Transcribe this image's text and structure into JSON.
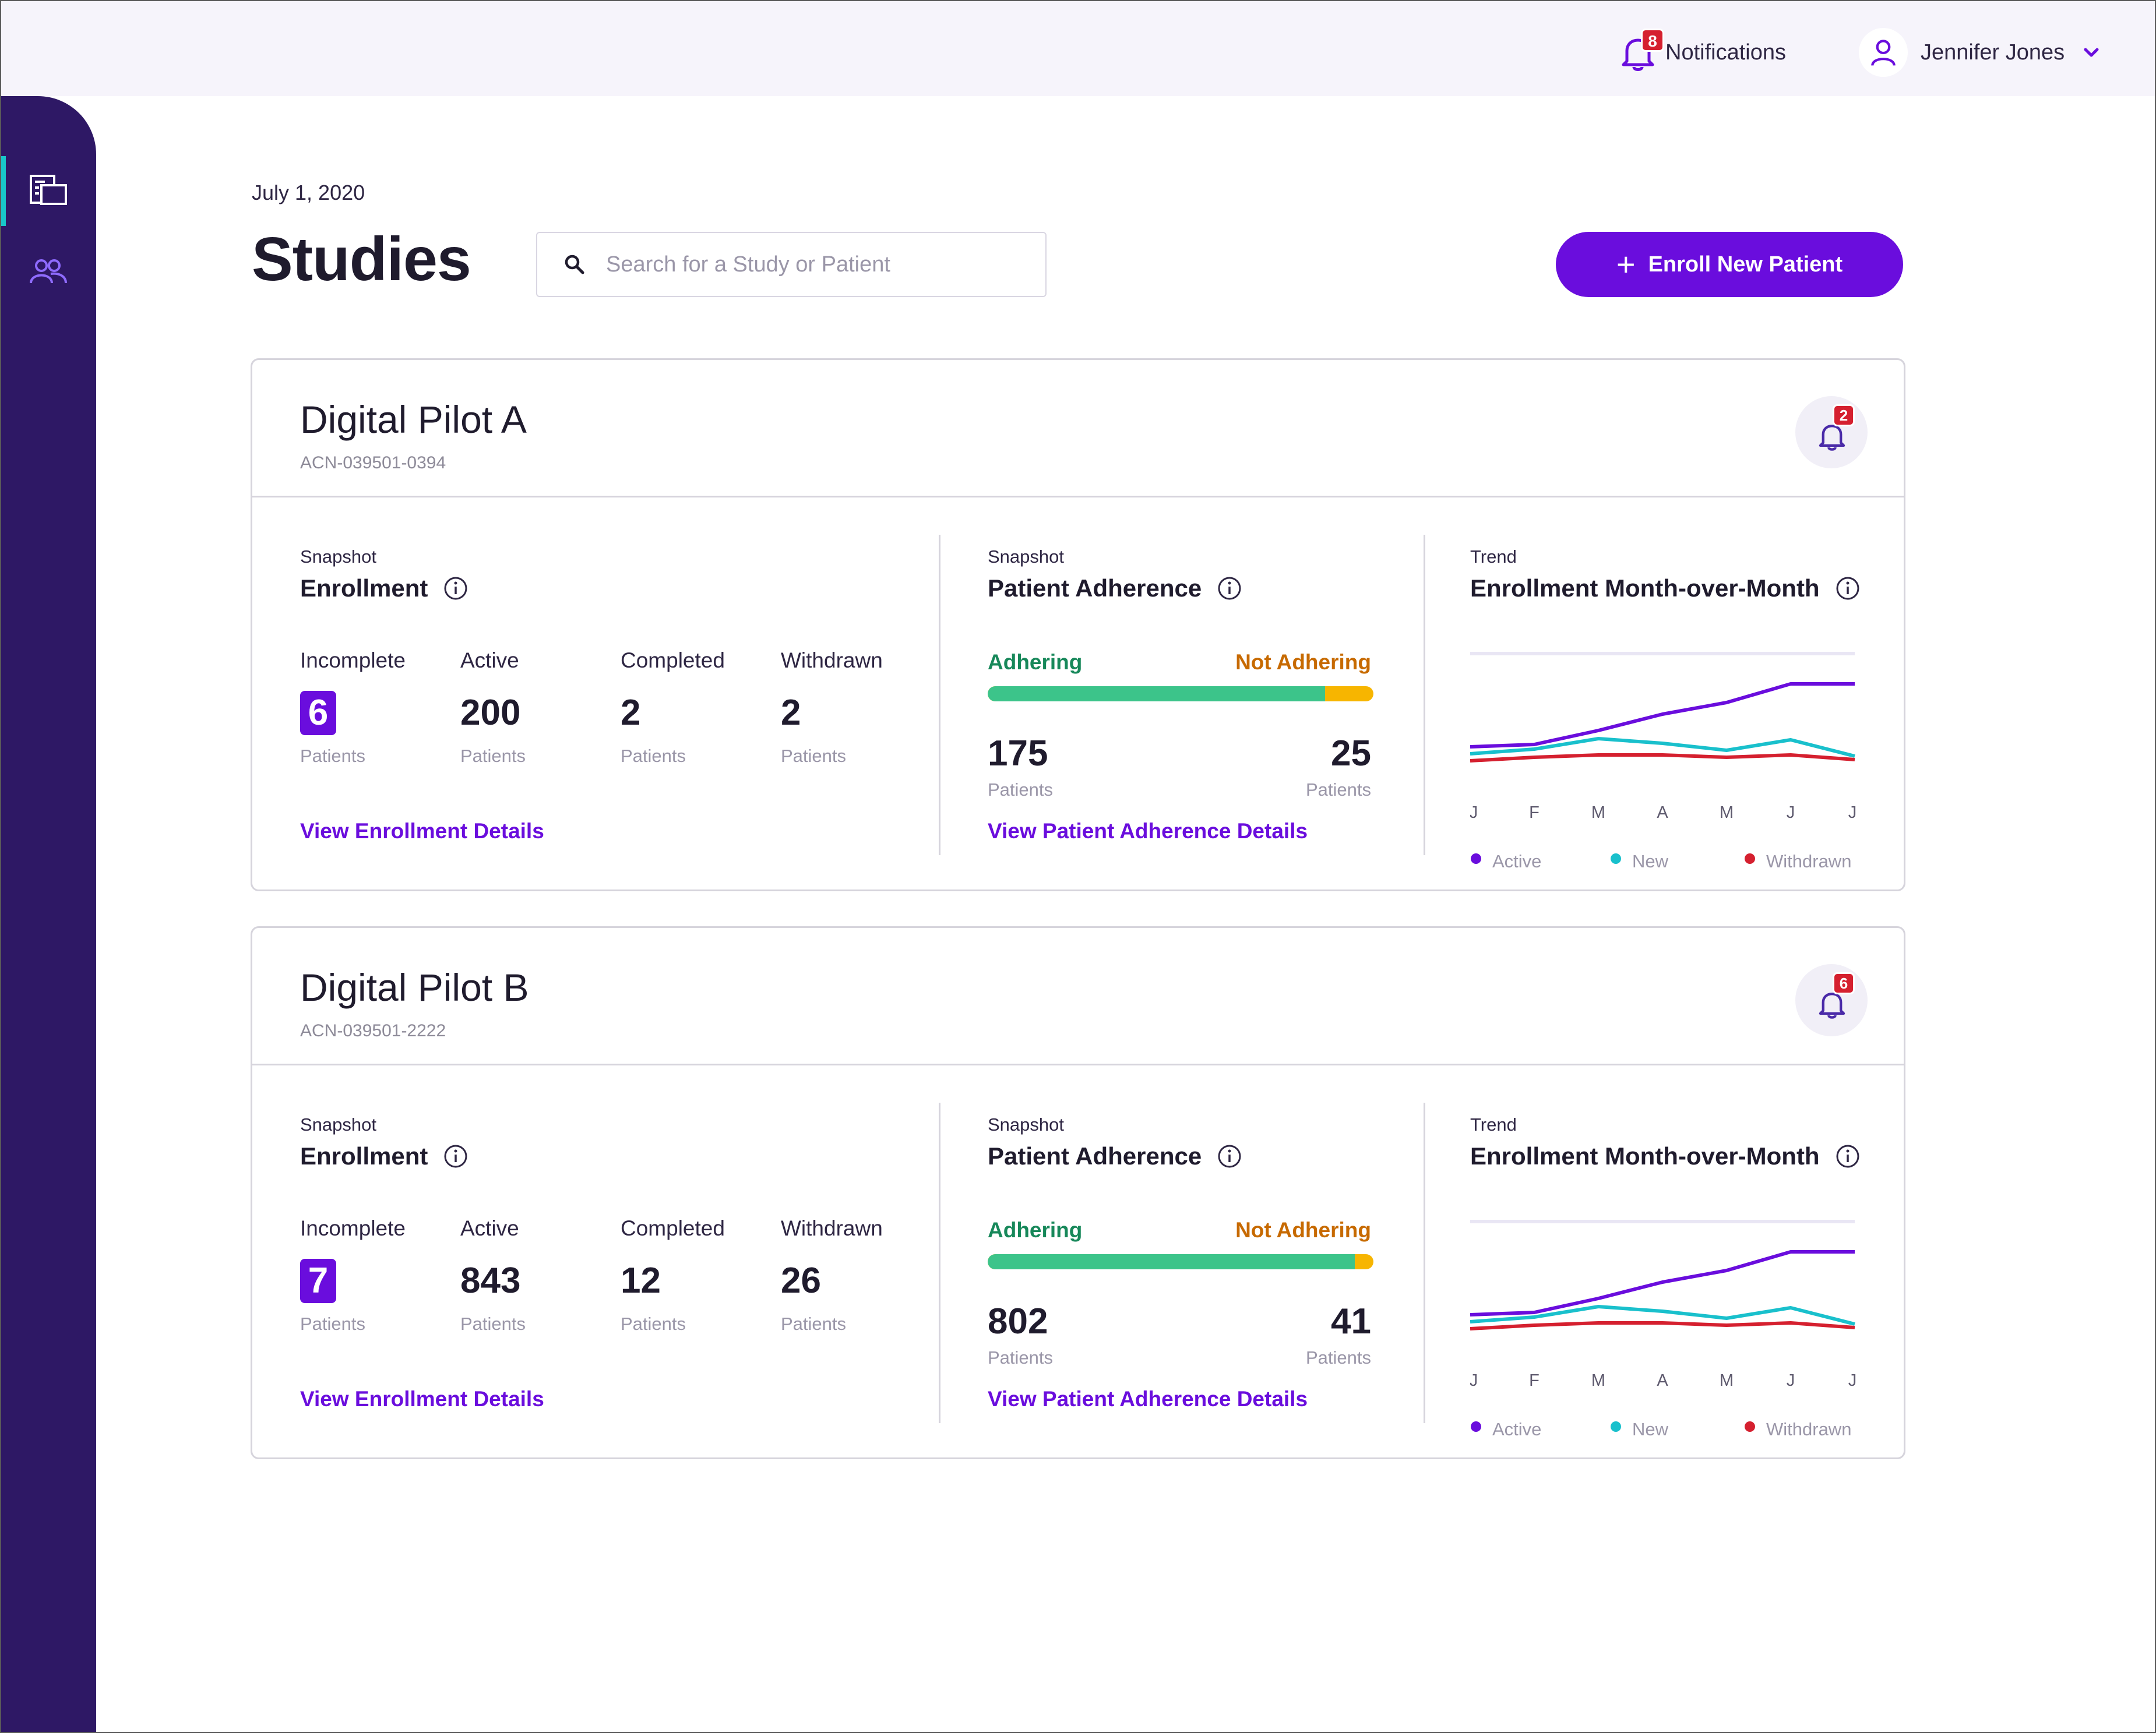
{
  "header": {
    "notifications_label": "Notifications",
    "notifications_count": "8",
    "user_name": "Jennifer Jones"
  },
  "sidebar": {
    "items": [
      {
        "icon": "studies-icon",
        "active": true
      },
      {
        "icon": "patients-icon",
        "active": false
      }
    ]
  },
  "page": {
    "date": "July 1, 2020",
    "title": "Studies",
    "search_placeholder": "Search for a Study or Patient",
    "search_value": "",
    "enroll_label": "Enroll New Patient"
  },
  "colors": {
    "brand": "#6a0ddd",
    "sidebar": "#2e1865",
    "adhering": "#3cc48a",
    "not_adhering": "#f7b500",
    "active_line": "#6a0ddd",
    "new_line": "#19c0cc",
    "withdrawn_line": "#d5202f"
  },
  "studies": [
    {
      "name": "Digital Pilot A",
      "code": "ACN-039501-0394",
      "alert_count": "2",
      "enrollment": {
        "kicker": "Snapshot",
        "title": "Enrollment",
        "stats": [
          {
            "label": "Incomplete",
            "value": "6",
            "unit": "Patients"
          },
          {
            "label": "Active",
            "value": "200",
            "unit": "Patients"
          },
          {
            "label": "Completed",
            "value": "2",
            "unit": "Patients"
          },
          {
            "label": "Withdrawn",
            "value": "2",
            "unit": "Patients"
          }
        ],
        "link": "View Enrollment Details"
      },
      "adherence": {
        "kicker": "Snapshot",
        "title": "Patient Adherence",
        "adhering_label": "Adhering",
        "not_adhering_label": "Not Adhering",
        "adhering": "175",
        "not_adhering": "25",
        "unit": "Patients",
        "link": "View Patient Adherence Details"
      },
      "trend": {
        "kicker": "Trend",
        "title": "Enrollment Month-over-Month"
      }
    },
    {
      "name": "Digital Pilot B",
      "code": "ACN-039501-2222",
      "alert_count": "6",
      "enrollment": {
        "kicker": "Snapshot",
        "title": "Enrollment",
        "stats": [
          {
            "label": "Incomplete",
            "value": "7",
            "unit": "Patients"
          },
          {
            "label": "Active",
            "value": "843",
            "unit": "Patients"
          },
          {
            "label": "Completed",
            "value": "12",
            "unit": "Patients"
          },
          {
            "label": "Withdrawn",
            "value": "26",
            "unit": "Patients"
          }
        ],
        "link": "View Enrollment Details"
      },
      "adherence": {
        "kicker": "Snapshot",
        "title": "Patient Adherence",
        "adhering_label": "Adhering",
        "not_adhering_label": "Not Adhering",
        "adhering": "802",
        "not_adhering": "41",
        "unit": "Patients",
        "link": "View Patient Adherence Details"
      },
      "trend": {
        "kicker": "Trend",
        "title": "Enrollment Month-over-Month"
      }
    }
  ],
  "chart_data": [
    {
      "type": "line",
      "categories": [
        "J",
        "F",
        "M",
        "A",
        "M",
        "J",
        "J"
      ],
      "ylim": [
        0,
        100
      ],
      "grid": false,
      "legend": "bottom",
      "series": [
        {
          "name": "Active",
          "color": "#6a0ddd",
          "values": [
            28,
            30,
            42,
            56,
            66,
            82,
            82
          ]
        },
        {
          "name": "New",
          "color": "#19c0cc",
          "values": [
            22,
            26,
            35,
            31,
            25,
            34,
            20
          ]
        },
        {
          "name": "Withdrawn",
          "color": "#d5202f",
          "values": [
            16,
            19,
            21,
            21,
            19,
            21,
            17
          ]
        }
      ]
    },
    {
      "type": "line",
      "categories": [
        "J",
        "F",
        "M",
        "A",
        "M",
        "J",
        "J"
      ],
      "ylim": [
        0,
        100
      ],
      "grid": false,
      "legend": "bottom",
      "series": [
        {
          "name": "Active",
          "color": "#6a0ddd",
          "values": [
            28,
            30,
            42,
            56,
            66,
            82,
            82
          ]
        },
        {
          "name": "New",
          "color": "#19c0cc",
          "values": [
            22,
            26,
            35,
            31,
            25,
            34,
            20
          ]
        },
        {
          "name": "Withdrawn",
          "color": "#d5202f",
          "values": [
            16,
            19,
            21,
            21,
            19,
            21,
            17
          ]
        }
      ]
    }
  ]
}
